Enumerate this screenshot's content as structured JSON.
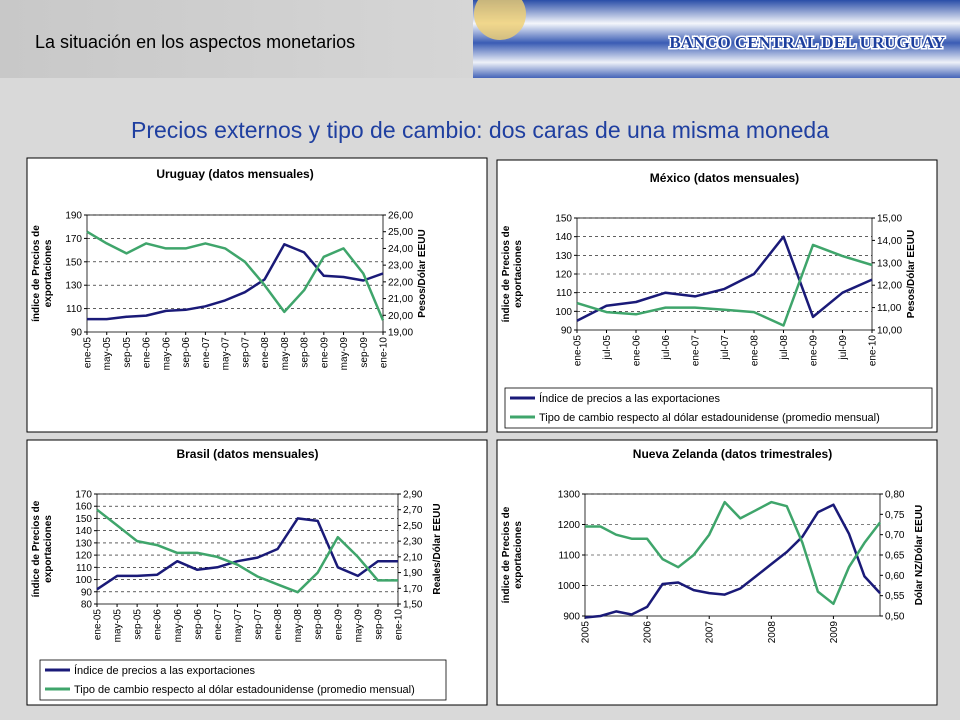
{
  "header": {
    "section": "La situación en los aspectos monetarios",
    "institution": "BANCO CENTRAL DEL URUGUAY"
  },
  "title": "Precios externos y tipo de cambio: dos caras de una misma moneda",
  "chart_data": [
    {
      "type": "line",
      "title": "Uruguay (datos mensuales)",
      "y_label": [
        "índice de Precios de",
        "exportaciones"
      ],
      "y2_label": [
        "Pesos/Dólar EEUU"
      ],
      "categories": [
        "ene-05",
        "may-05",
        "sep-05",
        "ene-06",
        "may-06",
        "sep-06",
        "ene-07",
        "may-07",
        "sep-07",
        "ene-08",
        "may-08",
        "sep-08",
        "ene-09",
        "may-09",
        "sep-09",
        "ene-10"
      ],
      "series": [
        {
          "color": "#1a1a78",
          "values": [
            101,
            101,
            103,
            104,
            108,
            109,
            112,
            117,
            124,
            135,
            165,
            158,
            138,
            137,
            134,
            140
          ]
        },
        {
          "color": "#3fa56b",
          "axis": "y2",
          "values": [
            25.0,
            24.3,
            23.7,
            24.3,
            24.0,
            24.0,
            24.3,
            24.0,
            23.2,
            21.8,
            20.2,
            21.5,
            23.5,
            24.0,
            22.5,
            19.7
          ]
        }
      ],
      "ylim": [
        90,
        190
      ],
      "yticks": [
        90,
        110,
        130,
        150,
        170,
        190
      ],
      "y2lim": [
        19,
        26
      ],
      "y2ticks": [
        {
          "value": 19,
          "label": "19,00"
        },
        {
          "value": 20,
          "label": "20,00"
        },
        {
          "value": 21,
          "label": "21,00"
        },
        {
          "value": 22,
          "label": "22,00"
        },
        {
          "value": 23,
          "label": "23,00"
        },
        {
          "value": 24,
          "label": "24,00"
        },
        {
          "value": 25,
          "label": "25,00"
        },
        {
          "value": 26,
          "label": "26,00"
        }
      ],
      "grid": true
    },
    {
      "type": "line",
      "title": "México (datos mensuales)",
      "y_label": [
        "índice de Precios de",
        "exportaciones"
      ],
      "y2_label": [
        "Pesos/Dólar EEUU"
      ],
      "categories": [
        "ene-05",
        "jul-05",
        "ene-06",
        "jul-06",
        "ene-07",
        "jul-07",
        "ene-08",
        "jul-08",
        "ene-09",
        "jul-09",
        "ene-10"
      ],
      "series": [
        {
          "name": "Índice de precios a las exportaciones",
          "color": "#1a1a78",
          "values": [
            95,
            103,
            105,
            110,
            108,
            112,
            120,
            140,
            97,
            110,
            117
          ]
        },
        {
          "name": "Tipo de cambio respecto al dólar estadounidense (promedio mensual)",
          "color": "#3fa56b",
          "axis": "y2",
          "values": [
            11.2,
            10.8,
            10.7,
            11.0,
            11.0,
            10.9,
            10.8,
            10.2,
            13.8,
            13.3,
            12.9
          ]
        }
      ],
      "ylim": [
        90,
        150
      ],
      "yticks": [
        90,
        100,
        110,
        120,
        130,
        140,
        150
      ],
      "y2lim": [
        10,
        15
      ],
      "y2ticks": [
        {
          "value": 10,
          "label": "10,00"
        },
        {
          "value": 11,
          "label": "11,00"
        },
        {
          "value": 12,
          "label": "12,00"
        },
        {
          "value": 13,
          "label": "13,00"
        },
        {
          "value": 14,
          "label": "14,00"
        },
        {
          "value": 15,
          "label": "15,00"
        }
      ],
      "grid": true
    },
    {
      "type": "line",
      "title": "Brasil (datos mensuales)",
      "y_label": [
        "índice de Precios de",
        "exportaciones"
      ],
      "y2_label": [
        "Reales/Dólar EEUU"
      ],
      "categories": [
        "ene-05",
        "may-05",
        "sep-05",
        "ene-06",
        "may-06",
        "sep-06",
        "ene-07",
        "may-07",
        "sep-07",
        "ene-08",
        "may-08",
        "sep-08",
        "ene-09",
        "may-09",
        "sep-09",
        "ene-10"
      ],
      "series": [
        {
          "name": "Índice de precios a las exportaciones",
          "color": "#1a1a78",
          "values": [
            92,
            103,
            103,
            104,
            115,
            108,
            110,
            115,
            118,
            125,
            150,
            148,
            110,
            103,
            115,
            115
          ]
        },
        {
          "name": "Tipo de cambio respecto al dólar estadounidense (promedio mensual)",
          "color": "#3fa56b",
          "axis": "y2",
          "values": [
            2.7,
            2.5,
            2.3,
            2.25,
            2.15,
            2.15,
            2.1,
            2.0,
            1.85,
            1.75,
            1.65,
            1.9,
            2.35,
            2.1,
            1.8,
            1.8
          ]
        }
      ],
      "ylim": [
        80,
        170
      ],
      "yticks": [
        80,
        90,
        100,
        110,
        120,
        130,
        140,
        150,
        160,
        170
      ],
      "y2lim": [
        1.5,
        2.9
      ],
      "y2ticks": [
        {
          "value": 1.5,
          "label": "1,50"
        },
        {
          "value": 1.7,
          "label": "1,70"
        },
        {
          "value": 1.9,
          "label": "1,90"
        },
        {
          "value": 2.1,
          "label": "2,10"
        },
        {
          "value": 2.3,
          "label": "2,30"
        },
        {
          "value": 2.5,
          "label": "2,50"
        },
        {
          "value": 2.7,
          "label": "2,70"
        },
        {
          "value": 2.9,
          "label": "2,90"
        }
      ],
      "grid": true
    },
    {
      "type": "line",
      "title": "Nueva Zelanda (datos trimestrales)",
      "y_label": [
        "índice de Precios de",
        "exportaciones"
      ],
      "y2_label": [
        "Dólar NZ/Dólar EEUU"
      ],
      "categories": [
        "2005",
        null,
        null,
        null,
        "2006",
        null,
        null,
        null,
        "2007",
        null,
        null,
        null,
        "2008",
        null,
        null,
        null,
        "2009",
        null,
        null,
        null
      ],
      "series": [
        {
          "color": "#1a1a78",
          "values": [
            895,
            900,
            915,
            905,
            930,
            1005,
            1010,
            985,
            975,
            970,
            990,
            1030,
            1070,
            1110,
            1160,
            1240,
            1265,
            1170,
            1030,
            975
          ]
        },
        {
          "color": "#3fa56b",
          "axis": "y2",
          "values": [
            0.72,
            0.72,
            0.7,
            0.69,
            0.69,
            0.64,
            0.62,
            0.65,
            0.7,
            0.78,
            0.74,
            0.76,
            0.78,
            0.77,
            0.68,
            0.56,
            0.53,
            0.62,
            0.68,
            0.73
          ]
        }
      ],
      "ylim": [
        900,
        1300
      ],
      "yticks": [
        900,
        1000,
        1100,
        1200,
        1300
      ],
      "y2lim": [
        0.5,
        0.8
      ],
      "y2ticks": [
        {
          "value": 0.5,
          "label": "0,50"
        },
        {
          "value": 0.55,
          "label": "0,55"
        },
        {
          "value": 0.6,
          "label": "0,60"
        },
        {
          "value": 0.65,
          "label": "0,65"
        },
        {
          "value": 0.7,
          "label": "0,70"
        },
        {
          "value": 0.75,
          "label": "0,75"
        },
        {
          "value": 0.8,
          "label": "0,80"
        }
      ],
      "grid": true
    }
  ]
}
